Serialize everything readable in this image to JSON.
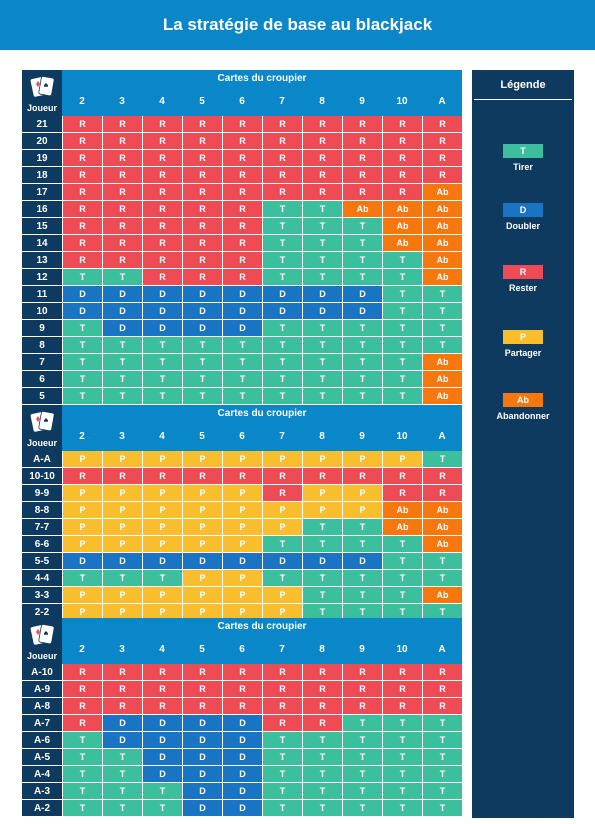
{
  "title": "La stratégie de base au blackjack",
  "dealer_label": "Cartes du croupier",
  "player_label": "Joueur",
  "dealer_cards": [
    "2",
    "3",
    "4",
    "5",
    "6",
    "7",
    "8",
    "9",
    "10",
    "A"
  ],
  "colors": {
    "T": "#3cbf9c",
    "D": "#1a74c4",
    "R": "#ef4b55",
    "P": "#f8be2e",
    "Ab": "#f7770f",
    "header": "#0a87c9",
    "dark": "#0d3a5e"
  },
  "legend": {
    "title": "Légende",
    "items": [
      {
        "code": "T",
        "label": "Tirer"
      },
      {
        "code": "D",
        "label": "Doubler"
      },
      {
        "code": "R",
        "label": "Rester"
      },
      {
        "code": "P",
        "label": "Partager"
      },
      {
        "code": "Ab",
        "label": "Abandonner"
      }
    ]
  },
  "tables": [
    {
      "rows": [
        {
          "player": "21",
          "cells": [
            "R",
            "R",
            "R",
            "R",
            "R",
            "R",
            "R",
            "R",
            "R",
            "R"
          ]
        },
        {
          "player": "20",
          "cells": [
            "R",
            "R",
            "R",
            "R",
            "R",
            "R",
            "R",
            "R",
            "R",
            "R"
          ]
        },
        {
          "player": "19",
          "cells": [
            "R",
            "R",
            "R",
            "R",
            "R",
            "R",
            "R",
            "R",
            "R",
            "R"
          ]
        },
        {
          "player": "18",
          "cells": [
            "R",
            "R",
            "R",
            "R",
            "R",
            "R",
            "R",
            "R",
            "R",
            "R"
          ]
        },
        {
          "player": "17",
          "cells": [
            "R",
            "R",
            "R",
            "R",
            "R",
            "R",
            "R",
            "R",
            "R",
            "Ab"
          ]
        },
        {
          "player": "16",
          "cells": [
            "R",
            "R",
            "R",
            "R",
            "R",
            "T",
            "T",
            "Ab",
            "Ab",
            "Ab"
          ]
        },
        {
          "player": "15",
          "cells": [
            "R",
            "R",
            "R",
            "R",
            "R",
            "T",
            "T",
            "T",
            "Ab",
            "Ab"
          ]
        },
        {
          "player": "14",
          "cells": [
            "R",
            "R",
            "R",
            "R",
            "R",
            "T",
            "T",
            "T",
            "Ab",
            "Ab"
          ]
        },
        {
          "player": "13",
          "cells": [
            "R",
            "R",
            "R",
            "R",
            "R",
            "T",
            "T",
            "T",
            "T",
            "Ab"
          ]
        },
        {
          "player": "12",
          "cells": [
            "T",
            "T",
            "R",
            "R",
            "R",
            "T",
            "T",
            "T",
            "T",
            "Ab"
          ]
        },
        {
          "player": "11",
          "cells": [
            "D",
            "D",
            "D",
            "D",
            "D",
            "D",
            "D",
            "D",
            "T",
            "T"
          ]
        },
        {
          "player": "10",
          "cells": [
            "D",
            "D",
            "D",
            "D",
            "D",
            "D",
            "D",
            "D",
            "T",
            "T"
          ]
        },
        {
          "player": "9",
          "cells": [
            "T",
            "D",
            "D",
            "D",
            "D",
            "T",
            "T",
            "T",
            "T",
            "T"
          ]
        },
        {
          "player": "8",
          "cells": [
            "T",
            "T",
            "T",
            "T",
            "T",
            "T",
            "T",
            "T",
            "T",
            "T"
          ]
        },
        {
          "player": "7",
          "cells": [
            "T",
            "T",
            "T",
            "T",
            "T",
            "T",
            "T",
            "T",
            "T",
            "Ab"
          ]
        },
        {
          "player": "6",
          "cells": [
            "T",
            "T",
            "T",
            "T",
            "T",
            "T",
            "T",
            "T",
            "T",
            "Ab"
          ]
        },
        {
          "player": "5",
          "cells": [
            "T",
            "T",
            "T",
            "T",
            "T",
            "T",
            "T",
            "T",
            "T",
            "Ab"
          ]
        }
      ]
    },
    {
      "rows": [
        {
          "player": "A-A",
          "cells": [
            "P",
            "P",
            "P",
            "P",
            "P",
            "P",
            "P",
            "P",
            "P",
            "T"
          ]
        },
        {
          "player": "10-10",
          "cells": [
            "R",
            "R",
            "R",
            "R",
            "R",
            "R",
            "R",
            "R",
            "R",
            "R"
          ]
        },
        {
          "player": "9-9",
          "cells": [
            "P",
            "P",
            "P",
            "P",
            "P",
            "R",
            "P",
            "P",
            "R",
            "R"
          ]
        },
        {
          "player": "8-8",
          "cells": [
            "P",
            "P",
            "P",
            "P",
            "P",
            "P",
            "P",
            "P",
            "Ab",
            "Ab"
          ]
        },
        {
          "player": "7-7",
          "cells": [
            "P",
            "P",
            "P",
            "P",
            "P",
            "P",
            "T",
            "T",
            "Ab",
            "Ab"
          ]
        },
        {
          "player": "6-6",
          "cells": [
            "P",
            "P",
            "P",
            "P",
            "P",
            "T",
            "T",
            "T",
            "T",
            "Ab"
          ]
        },
        {
          "player": "5-5",
          "cells": [
            "D",
            "D",
            "D",
            "D",
            "D",
            "D",
            "D",
            "D",
            "T",
            "T"
          ]
        },
        {
          "player": "4-4",
          "cells": [
            "T",
            "T",
            "T",
            "P",
            "P",
            "T",
            "T",
            "T",
            "T",
            "T"
          ]
        },
        {
          "player": "3-3",
          "cells": [
            "P",
            "P",
            "P",
            "P",
            "P",
            "P",
            "T",
            "T",
            "T",
            "Ab"
          ]
        },
        {
          "player": "2-2",
          "cells": [
            "P",
            "P",
            "P",
            "P",
            "P",
            "P",
            "T",
            "T",
            "T",
            "T"
          ]
        }
      ]
    },
    {
      "rows": [
        {
          "player": "A-10",
          "cells": [
            "R",
            "R",
            "R",
            "R",
            "R",
            "R",
            "R",
            "R",
            "R",
            "R"
          ]
        },
        {
          "player": "A-9",
          "cells": [
            "R",
            "R",
            "R",
            "R",
            "R",
            "R",
            "R",
            "R",
            "R",
            "R"
          ]
        },
        {
          "player": "A-8",
          "cells": [
            "R",
            "R",
            "R",
            "R",
            "R",
            "R",
            "R",
            "R",
            "R",
            "R"
          ]
        },
        {
          "player": "A-7",
          "cells": [
            "R",
            "D",
            "D",
            "D",
            "D",
            "R",
            "R",
            "T",
            "T",
            "T"
          ]
        },
        {
          "player": "A-6",
          "cells": [
            "T",
            "D",
            "D",
            "D",
            "D",
            "T",
            "T",
            "T",
            "T",
            "T"
          ]
        },
        {
          "player": "A-5",
          "cells": [
            "T",
            "T",
            "D",
            "D",
            "D",
            "T",
            "T",
            "T",
            "T",
            "T"
          ]
        },
        {
          "player": "A-4",
          "cells": [
            "T",
            "T",
            "D",
            "D",
            "D",
            "T",
            "T",
            "T",
            "T",
            "T"
          ]
        },
        {
          "player": "A-3",
          "cells": [
            "T",
            "T",
            "T",
            "D",
            "D",
            "T",
            "T",
            "T",
            "T",
            "T"
          ]
        },
        {
          "player": "A-2",
          "cells": [
            "T",
            "T",
            "T",
            "D",
            "D",
            "T",
            "T",
            "T",
            "T",
            "T"
          ]
        }
      ]
    }
  ]
}
